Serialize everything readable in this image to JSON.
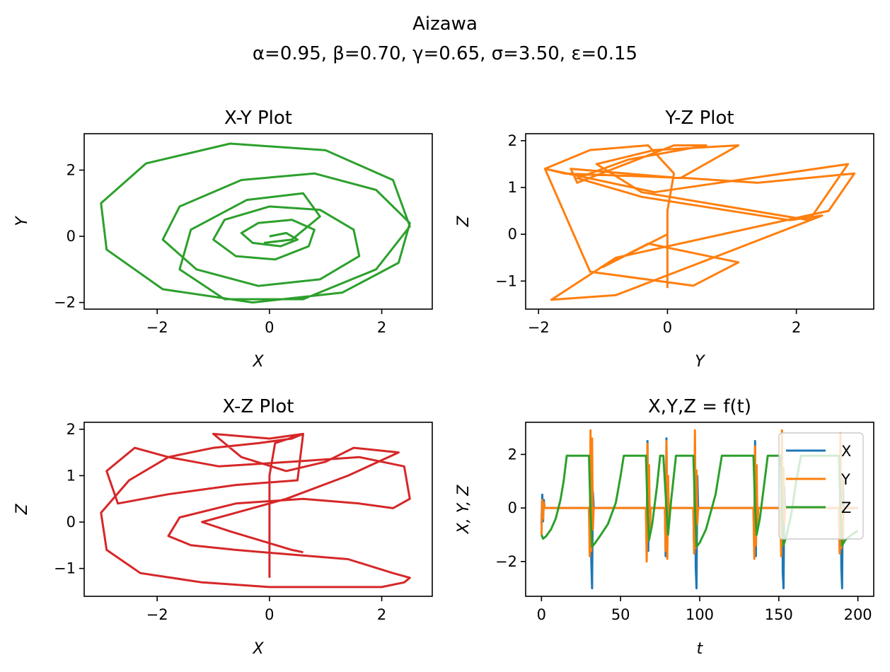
{
  "figure": {
    "title": "Aizawa",
    "subtitle": "α=0.95, β=0.70, γ=0.65, σ=3.50, ε=0.15"
  },
  "chart_data": [
    {
      "type": "line",
      "title": "X-Y Plot",
      "xlabel": "X",
      "ylabel": "Y",
      "xlim": [
        -3.3,
        2.9
      ],
      "ylim": [
        -2.2,
        3.1
      ],
      "xticks": [
        -2,
        0,
        2
      ],
      "yticks": [
        -2,
        0,
        2
      ],
      "color": "#2ca02c",
      "series": [
        {
          "x": [
            0.0,
            0.3,
            0.5,
            0.2,
            -0.3,
            -0.5,
            -0.2,
            0.4,
            0.8,
            0.7,
            0.1,
            -0.6,
            -1.0,
            -0.8,
            0.0,
            0.9,
            1.5,
            1.6,
            0.9,
            -0.2,
            -1.3,
            -1.9,
            -1.6,
            -0.5,
            0.8,
            1.9,
            2.5,
            2.3,
            1.3,
            -0.3,
            -1.9,
            -2.9,
            -3.0,
            -2.2,
            -0.7,
            1.0,
            2.2,
            2.5,
            1.9,
            0.6,
            -0.8,
            -1.6,
            -1.4,
            -0.4,
            0.6,
            0.9,
            0.4,
            -0.1
          ],
          "y": [
            0.0,
            0.1,
            -0.1,
            -0.3,
            -0.2,
            0.1,
            0.4,
            0.5,
            0.2,
            -0.3,
            -0.7,
            -0.6,
            -0.1,
            0.5,
            0.9,
            0.8,
            0.2,
            -0.6,
            -1.3,
            -1.5,
            -1.0,
            -0.1,
            0.9,
            1.7,
            1.9,
            1.4,
            0.4,
            -0.8,
            -1.7,
            -2.0,
            -1.6,
            -0.4,
            1.0,
            2.2,
            2.8,
            2.6,
            1.7,
            0.3,
            -1.0,
            -1.9,
            -1.9,
            -1.0,
            0.2,
            1.1,
            1.3,
            0.6,
            -0.1,
            -0.2
          ]
        }
      ]
    },
    {
      "type": "line",
      "title": "Y-Z Plot",
      "xlabel": "Y",
      "ylabel": "Z",
      "xlim": [
        -2.2,
        3.2
      ],
      "ylim": [
        -1.6,
        2.15
      ],
      "xticks": [
        -2,
        0,
        2
      ],
      "yticks": [
        -1,
        0,
        1,
        2
      ],
      "color": "#ff7f0e",
      "series": [
        {
          "x": [
            0.0,
            0.0,
            0.0,
            0.1,
            -0.3,
            -1.2,
            -1.9,
            -1.6,
            0.3,
            1.4,
            2.9,
            2.5,
            -0.8,
            -1.8,
            -0.8,
            0.9,
            2.4,
            1.9,
            -0.4,
            -1.4,
            -0.6,
            0.6,
            0.1,
            -1.4,
            -1.5,
            0.2,
            1.1,
            -0.2,
            -1.1,
            -0.4,
            2.2,
            2.8,
            -0.2,
            -1.9,
            -1.2,
            0.4,
            1.1,
            -0.3,
            -1.0,
            0.0,
            0.0
          ],
          "y": [
            -1.15,
            -0.5,
            0.5,
            1.3,
            1.9,
            1.8,
            1.4,
            1.3,
            1.2,
            1.1,
            1.3,
            0.5,
            -0.5,
            -1.4,
            -1.3,
            -0.4,
            0.4,
            0.3,
            0.8,
            1.2,
            1.6,
            1.9,
            1.9,
            1.1,
            1.4,
            1.2,
            1.9,
            1.8,
            1.5,
            0.9,
            0.3,
            1.5,
            0.9,
            1.4,
            -0.8,
            -1.1,
            -0.6,
            -0.2,
            -0.7,
            0.0,
            -1.1
          ]
        }
      ]
    },
    {
      "type": "line",
      "title": "X-Z Plot",
      "xlabel": "X",
      "ylabel": "Z",
      "xlim": [
        -3.3,
        2.9
      ],
      "ylim": [
        -1.6,
        2.15
      ],
      "xticks": [
        -2,
        0,
        2
      ],
      "yticks": [
        -1,
        0,
        1,
        2
      ],
      "color": "#d62728",
      "series": [
        {
          "x": [
            0.0,
            0.0,
            0.0,
            0.0,
            0.1,
            0.6,
            0.4,
            -0.2,
            -1.0,
            -1.8,
            -2.5,
            -3.0,
            -2.9,
            -2.3,
            -1.2,
            0.0,
            1.2,
            2.0,
            2.4,
            2.5,
            2.2,
            1.4,
            0.4,
            -0.6,
            -1.4,
            -1.8,
            -1.6,
            -0.6,
            0.6,
            1.6,
            2.2,
            2.5,
            2.4,
            1.6,
            0.4,
            -0.9,
            -1.8,
            -2.4,
            -2.9,
            -2.7,
            -1.8,
            -0.6,
            0.5,
            0.6,
            0.0,
            -1.0,
            -0.5,
            0.3,
            1.0,
            1.5,
            2.3,
            1.4,
            0.3,
            -0.6,
            -1.2,
            -0.7,
            0.4,
            0.6
          ],
          "y": [
            -1.2,
            -0.5,
            0.3,
            1.0,
            1.7,
            1.9,
            1.8,
            1.7,
            1.6,
            1.4,
            0.9,
            0.2,
            -0.6,
            -1.1,
            -1.3,
            -1.4,
            -1.4,
            -1.4,
            -1.3,
            -1.2,
            -1.1,
            -0.8,
            -0.7,
            -0.6,
            -0.5,
            -0.3,
            0.1,
            0.4,
            0.5,
            0.4,
            0.3,
            0.5,
            1.2,
            1.4,
            1.3,
            1.2,
            1.4,
            1.6,
            1.1,
            0.4,
            0.6,
            0.8,
            0.9,
            1.9,
            1.8,
            1.9,
            1.4,
            1.1,
            1.3,
            1.6,
            1.5,
            1.0,
            0.5,
            0.2,
            0.0,
            -0.2,
            -0.6,
            -0.65
          ]
        }
      ]
    },
    {
      "type": "line",
      "title": "X,Y,Z = f(t)",
      "xlabel": "t",
      "ylabel": "X, Y, Z",
      "xlim": [
        -10,
        210
      ],
      "ylim": [
        -3.3,
        3.2
      ],
      "xticks": [
        0,
        50,
        100,
        150,
        200
      ],
      "yticks": [
        -2,
        0,
        2
      ],
      "legend": "top-right",
      "bursts": [
        0,
        31,
        67,
        79,
        97,
        135,
        152,
        189
      ],
      "series": [
        {
          "name": "X",
          "color": "#1f77b4",
          "x": [
            0,
            0.5,
            1,
            1.5,
            2,
            30,
            30.5,
            31,
            31.5,
            32,
            32.5,
            33,
            66,
            66.5,
            67,
            67.5,
            68,
            68.5,
            69,
            78,
            78.5,
            79,
            79.5,
            80,
            80.5,
            81,
            96,
            96.5,
            97,
            97.5,
            98,
            98.5,
            99,
            134,
            134.5,
            135,
            135.5,
            136,
            136.5,
            137,
            151,
            151.5,
            152,
            152.5,
            153,
            153.5,
            154,
            188,
            188.5,
            189,
            189.5,
            190,
            190.5,
            191,
            200
          ],
          "y": [
            -0.6,
            0.5,
            -0.5,
            0.3,
            0.0,
            0.0,
            -0.8,
            1.5,
            -2.0,
            -3.0,
            0.6,
            0.0,
            0.0,
            -1.3,
            2.5,
            -1.6,
            1.0,
            -0.6,
            0.0,
            0.0,
            -1.8,
            2.6,
            -1.0,
            0.8,
            -0.4,
            0.0,
            0.0,
            -1.7,
            2.4,
            -2.2,
            -3.0,
            1.2,
            0.0,
            0.0,
            -1.4,
            2.5,
            -1.8,
            1.0,
            -0.5,
            0.0,
            0.0,
            -1.6,
            2.4,
            -2.4,
            -3.0,
            0.8,
            0.0,
            0.0,
            -1.6,
            2.6,
            -2.2,
            -3.0,
            1.0,
            0.0,
            0.0
          ]
        },
        {
          "name": "Y",
          "color": "#ff7f0e",
          "x": [
            0,
            0.5,
            1,
            1.5,
            2,
            30,
            30.5,
            31,
            31.5,
            32,
            32.5,
            33,
            66,
            66.5,
            67,
            67.5,
            68,
            68.5,
            69,
            78,
            78.5,
            79,
            79.5,
            80,
            80.5,
            81,
            96,
            96.5,
            97,
            97.5,
            98,
            98.5,
            99,
            134,
            134.5,
            135,
            135.5,
            136,
            136.5,
            137,
            151,
            151.5,
            152,
            152.5,
            153,
            153.5,
            154,
            188,
            188.5,
            189,
            189.5,
            190,
            190.5,
            191,
            200
          ],
          "y": [
            -1.0,
            0.3,
            -0.4,
            0.2,
            0.0,
            0.0,
            -1.8,
            2.9,
            -1.6,
            2.6,
            -0.8,
            0.0,
            0.0,
            -2.0,
            2.4,
            -1.2,
            1.6,
            -0.8,
            0.0,
            0.0,
            -1.6,
            2.5,
            -1.9,
            1.2,
            -0.6,
            0.0,
            0.0,
            -1.7,
            2.9,
            -1.5,
            1.4,
            -0.6,
            0.0,
            0.0,
            -1.9,
            2.3,
            -1.4,
            1.6,
            -0.7,
            0.0,
            0.0,
            -1.8,
            2.9,
            -1.2,
            1.5,
            -0.6,
            0.0,
            0.0,
            -1.7,
            2.8,
            -1.5,
            1.1,
            -1.3,
            0.0,
            0.0
          ]
        },
        {
          "name": "Z",
          "color": "#2ca02c",
          "x": [
            0,
            1,
            3,
            6,
            9,
            12,
            14,
            16,
            30,
            31,
            32,
            34,
            37,
            42,
            47,
            50,
            52,
            66,
            67,
            68,
            70,
            73,
            75,
            77,
            79,
            80,
            82,
            85,
            88,
            90,
            96,
            97,
            98,
            100,
            104,
            110,
            114,
            116,
            134,
            135,
            136,
            138,
            141,
            143,
            145,
            151,
            152,
            153,
            155,
            158,
            161,
            164,
            167,
            188,
            189,
            190,
            192,
            196,
            200
          ],
          "y": [
            -1.0,
            -1.15,
            -1.05,
            -0.8,
            -0.4,
            0.3,
            1.0,
            1.95,
            1.95,
            -0.2,
            -1.45,
            -1.3,
            -1.05,
            -0.6,
            0.2,
            1.2,
            1.95,
            1.95,
            0.0,
            -1.2,
            -0.6,
            0.8,
            1.95,
            1.95,
            0.0,
            -1.0,
            0.3,
            1.95,
            1.95,
            1.95,
            1.95,
            0.0,
            -1.45,
            -1.3,
            -0.8,
            0.5,
            1.95,
            1.95,
            1.95,
            0.0,
            -1.0,
            -0.4,
            1.0,
            1.95,
            1.95,
            1.95,
            0.0,
            -1.4,
            -1.0,
            -0.2,
            1.0,
            1.95,
            1.95,
            1.95,
            0.0,
            -1.4,
            -1.2,
            -1.0,
            -0.85
          ]
        }
      ]
    }
  ]
}
